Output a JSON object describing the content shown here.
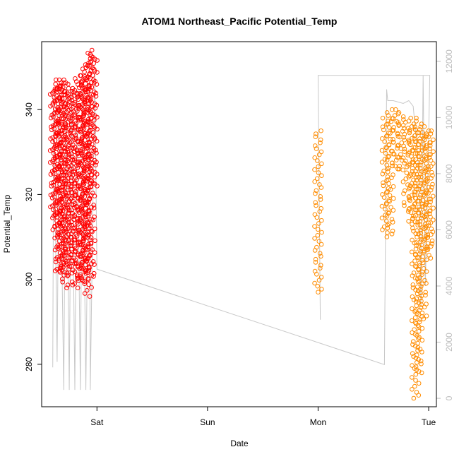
{
  "chart_data": {
    "type": "scatter",
    "title": "ATOM1 Northeast_Pacific Potential_Temp",
    "xlabel": "Date",
    "ylabel": "Potential_Temp",
    "x_ticks": [
      "Sat",
      "Sun",
      "Mon",
      "Tue"
    ],
    "y_ticks": [
      280,
      300,
      320,
      340
    ],
    "y_right_ticks": [
      0,
      2000,
      4000,
      6000,
      8000,
      10000,
      12000
    ],
    "xlim_days": [
      -0.5,
      3.07
    ],
    "ylim": [
      270,
      356
    ],
    "ylim_right": [
      -300,
      12700
    ],
    "colors": {
      "series1": "#ff0000",
      "series2": "#ff8c00",
      "altitude": "#c8c8c8"
    },
    "series": [
      {
        "color": "red",
        "profiles": [
          {
            "x": -0.39,
            "top": 345,
            "bottom": 315
          },
          {
            "x": -0.37,
            "top": 346,
            "bottom": 311
          },
          {
            "x": -0.35,
            "top": 347,
            "bottom": 302
          },
          {
            "x": -0.33,
            "top": 347,
            "bottom": 301
          },
          {
            "x": -0.31,
            "top": 347,
            "bottom": 302
          },
          {
            "x": -0.29,
            "top": 346,
            "bottom": 298
          },
          {
            "x": -0.26,
            "top": 345,
            "bottom": 301
          },
          {
            "x": -0.23,
            "top": 344,
            "bottom": 303
          },
          {
            "x": -0.2,
            "top": 345,
            "bottom": 298
          },
          {
            "x": -0.17,
            "top": 348,
            "bottom": 299
          },
          {
            "x": -0.14,
            "top": 348,
            "bottom": 299
          },
          {
            "x": -0.12,
            "top": 347,
            "bottom": 300
          },
          {
            "x": -0.1,
            "top": 351,
            "bottom": 302
          },
          {
            "x": -0.08,
            "top": 352,
            "bottom": 296
          },
          {
            "x": -0.05,
            "top": 354,
            "bottom": 300
          },
          {
            "x": -0.03,
            "top": 353,
            "bottom": 322
          }
        ]
      },
      {
        "color": "orange",
        "profiles": [
          {
            "x": 2.0,
            "top": 335,
            "bottom": 297
          },
          {
            "x": 2.61,
            "top": 338,
            "bottom": 311
          },
          {
            "x": 2.65,
            "top": 340,
            "bottom": 310
          },
          {
            "x": 2.7,
            "top": 340,
            "bottom": 326
          },
          {
            "x": 2.75,
            "top": 339,
            "bottom": 326
          },
          {
            "x": 2.8,
            "top": 337,
            "bottom": 316
          },
          {
            "x": 2.85,
            "top": 338,
            "bottom": 313
          },
          {
            "x": 2.88,
            "top": 336,
            "bottom": 272
          },
          {
            "x": 2.91,
            "top": 338,
            "bottom": 278
          },
          {
            "x": 2.95,
            "top": 336,
            "bottom": 290
          },
          {
            "x": 2.99,
            "top": 335,
            "bottom": 305
          },
          {
            "x": 3.01,
            "top": 335,
            "bottom": 307
          }
        ]
      }
    ],
    "altitude_track": [
      [
        -0.4,
        1100
      ],
      [
        -0.39,
        11000
      ],
      [
        -0.36,
        1300
      ],
      [
        -0.34,
        11100
      ],
      [
        -0.3,
        300
      ],
      [
        -0.28,
        11100
      ],
      [
        -0.25,
        300
      ],
      [
        -0.23,
        11000
      ],
      [
        -0.2,
        300
      ],
      [
        -0.18,
        11000
      ],
      [
        -0.15,
        300
      ],
      [
        -0.13,
        11000
      ],
      [
        -0.1,
        300
      ],
      [
        -0.07,
        11200
      ],
      [
        -0.06,
        300
      ],
      [
        -0.02,
        11600
      ],
      [
        0.0,
        4600
      ],
      [
        2.6,
        1200
      ],
      [
        2.62,
        11000
      ],
      [
        2.63,
        10600
      ],
      [
        2.68,
        10600
      ],
      [
        2.77,
        10500
      ],
      [
        2.82,
        10600
      ],
      [
        2.86,
        10400
      ],
      [
        2.88,
        9600
      ],
      [
        2.91,
        8200
      ],
      [
        2.93,
        3300
      ],
      [
        2.95,
        11500
      ],
      [
        2.97,
        4000
      ],
      [
        3.0,
        9200
      ],
      [
        3.01,
        11500
      ],
      [
        2.0,
        11500
      ],
      [
        2.02,
        2800
      ]
    ]
  }
}
